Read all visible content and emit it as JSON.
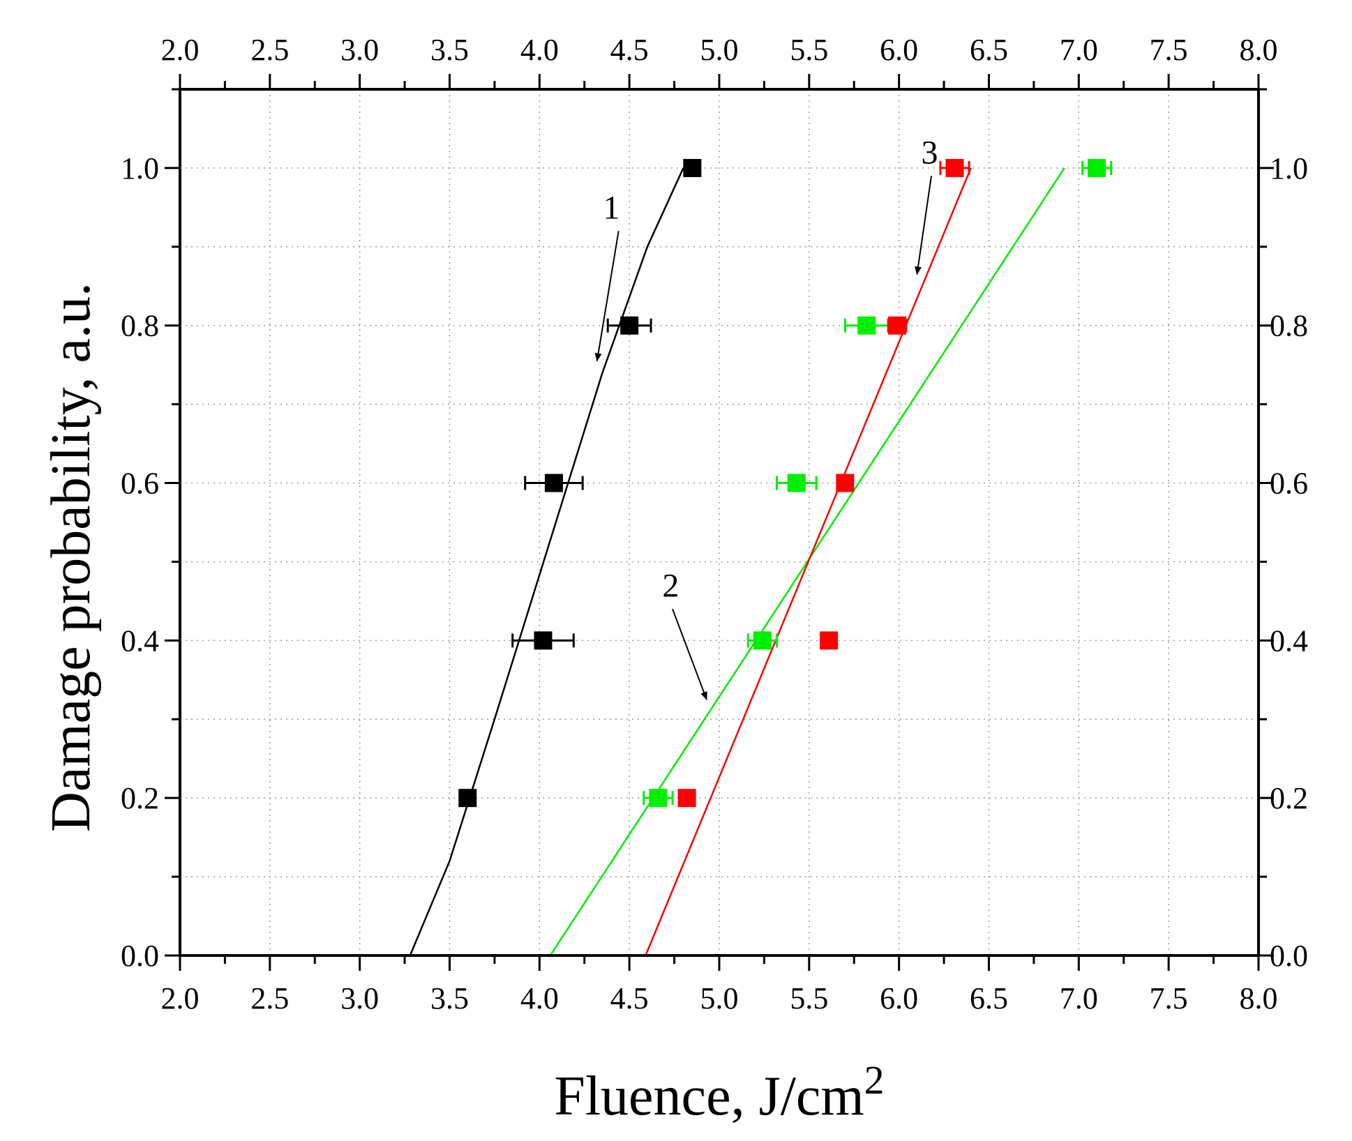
{
  "chart_data": {
    "type": "scatter",
    "title": "",
    "xlabel": "Fluence, J/cm",
    "xlabel_superscript": "2",
    "ylabel": "Damage probability, a.u.",
    "xlim": [
      2.0,
      8.0
    ],
    "ylim": [
      0.0,
      1.1
    ],
    "x_ticks": [
      "2.0",
      "2.5",
      "3.0",
      "3.5",
      "4.0",
      "4.5",
      "5.0",
      "5.5",
      "6.0",
      "6.5",
      "7.0",
      "7.5",
      "8.0"
    ],
    "y_ticks": [
      "0.0",
      "0.2",
      "0.4",
      "0.6",
      "0.8",
      "1.0"
    ],
    "grid": true,
    "series": [
      {
        "color": "#000000",
        "points": [
          {
            "x": 3.6,
            "y": 0.2,
            "xerr": 0.0
          },
          {
            "x": 4.02,
            "y": 0.4,
            "xerr": 0.17
          },
          {
            "x": 4.08,
            "y": 0.6,
            "xerr": 0.16
          },
          {
            "x": 4.5,
            "y": 0.8,
            "xerr": 0.12
          },
          {
            "x": 4.85,
            "y": 1.0,
            "xerr": 0.0
          }
        ],
        "fit": [
          [
            3.28,
            0.0
          ],
          [
            3.5,
            0.12
          ],
          [
            3.75,
            0.3
          ],
          [
            4.05,
            0.52
          ],
          [
            4.35,
            0.74
          ],
          [
            4.6,
            0.9
          ],
          [
            4.8,
            1.0
          ]
        ]
      },
      {
        "color": "#00ee00",
        "points": [
          {
            "x": 4.66,
            "y": 0.2,
            "xerr": 0.08
          },
          {
            "x": 5.24,
            "y": 0.4,
            "xerr": 0.08
          },
          {
            "x": 5.43,
            "y": 0.6,
            "xerr": 0.11
          },
          {
            "x": 5.82,
            "y": 0.8,
            "xerr": 0.12
          },
          {
            "x": 7.1,
            "y": 1.0,
            "xerr": 0.08
          }
        ],
        "fit": [
          [
            4.06,
            0.0
          ],
          [
            6.92,
            1.0
          ]
        ]
      },
      {
        "color": "#ff0000",
        "points": [
          {
            "x": 4.82,
            "y": 0.2,
            "xerr": 0.0
          },
          {
            "x": 5.61,
            "y": 0.4,
            "xerr": 0.0
          },
          {
            "x": 5.7,
            "y": 0.6,
            "xerr": 0.0
          },
          {
            "x": 5.99,
            "y": 0.8,
            "xerr": 0.05
          },
          {
            "x": 6.31,
            "y": 1.0,
            "xerr": 0.08
          }
        ],
        "fit": [
          [
            4.59,
            0.0
          ],
          [
            6.4,
            1.0
          ]
        ]
      }
    ],
    "annotations": [
      {
        "text": "1",
        "x": 4.4,
        "y": 0.95,
        "arrow_from": [
          4.44,
          0.92
        ],
        "arrow_to": [
          4.32,
          0.755
        ]
      },
      {
        "text": "2",
        "x": 4.73,
        "y": 0.47,
        "arrow_from": [
          4.74,
          0.44
        ],
        "arrow_to": [
          4.93,
          0.325
        ]
      },
      {
        "text": "3",
        "x": 6.17,
        "y": 1.02,
        "arrow_from": [
          6.18,
          0.99
        ],
        "arrow_to": [
          6.1,
          0.865
        ]
      }
    ]
  }
}
